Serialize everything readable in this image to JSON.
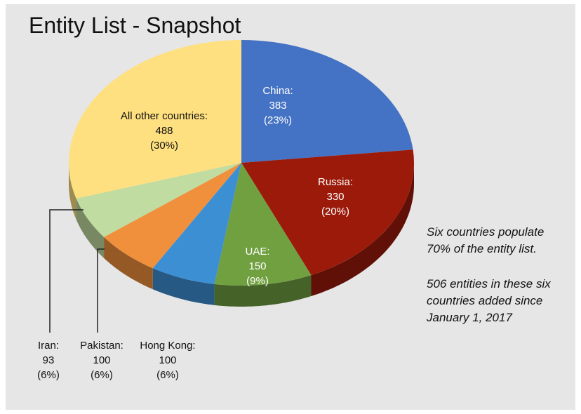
{
  "title": "Entity List - Snapshot",
  "notes": [
    "Six countries populate 70% of the entity list.",
    "506 entities in these six countries added since January 1, 2017"
  ],
  "colors": {
    "China": "#4472c4",
    "Russia": "#9b1a0a",
    "UAE": "#70a040",
    "Hong Kong": "#3d8fd4",
    "Pakistan": "#f0903c",
    "Iran": "#c0dca0",
    "All other countries": "#ffe080"
  },
  "chart_data": {
    "type": "pie",
    "start": "12 o'clock, clockwise",
    "slices": [
      {
        "label": "China:",
        "value": 383,
        "pct": "(23%)"
      },
      {
        "label": "Russia:",
        "value": 330,
        "pct": "(20%)"
      },
      {
        "label": "UAE:",
        "value": 150,
        "pct": "(9%)"
      },
      {
        "label": "Hong Kong:",
        "value": 100,
        "pct": "(6%)"
      },
      {
        "label": "Pakistan:",
        "value": 100,
        "pct": "(6%)"
      },
      {
        "label": "Iran:",
        "value": 93,
        "pct": "(6%)"
      },
      {
        "label": "All other countries:",
        "value": 488,
        "pct": "(30%)"
      }
    ]
  }
}
